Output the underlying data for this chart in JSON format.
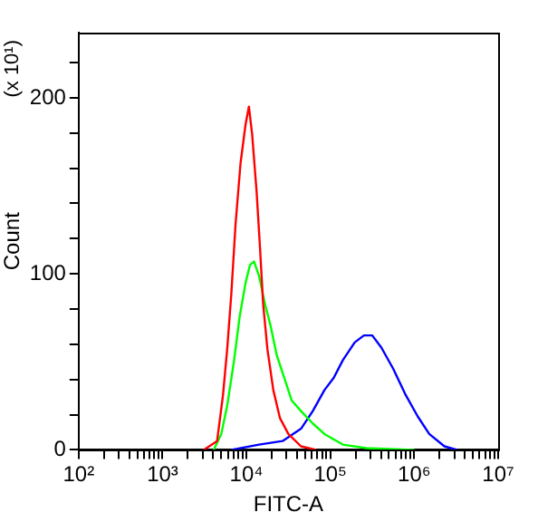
{
  "chart_data": {
    "type": "line",
    "xlabel": "FITC-A",
    "ylabel": "Count",
    "annotations": [
      "(x 10¹)"
    ],
    "log": "x",
    "grid": false,
    "legend": false,
    "marker": "none",
    "xlim": [
      100,
      10000000
    ],
    "ylim": [
      0,
      237
    ],
    "xticks": [
      {
        "value": 100,
        "label": "10²"
      },
      {
        "value": 200,
        "label": null
      },
      {
        "value": 300,
        "label": null
      },
      {
        "value": 400,
        "label": null
      },
      {
        "value": 500,
        "label": null
      },
      {
        "value": 600,
        "label": null
      },
      {
        "value": 700,
        "label": null
      },
      {
        "value": 800,
        "label": null
      },
      {
        "value": 900,
        "label": null
      },
      {
        "value": 1000,
        "label": "10³"
      },
      {
        "value": 2000,
        "label": null
      },
      {
        "value": 3000,
        "label": null
      },
      {
        "value": 4000,
        "label": null
      },
      {
        "value": 5000,
        "label": null
      },
      {
        "value": 6000,
        "label": null
      },
      {
        "value": 7000,
        "label": null
      },
      {
        "value": 8000,
        "label": null
      },
      {
        "value": 9000,
        "label": null
      },
      {
        "value": 10000,
        "label": "10⁴"
      },
      {
        "value": 20000,
        "label": null
      },
      {
        "value": 30000,
        "label": null
      },
      {
        "value": 40000,
        "label": null
      },
      {
        "value": 50000,
        "label": null
      },
      {
        "value": 60000,
        "label": null
      },
      {
        "value": 70000,
        "label": null
      },
      {
        "value": 80000,
        "label": null
      },
      {
        "value": 90000,
        "label": null
      },
      {
        "value": 100000,
        "label": "10⁵"
      },
      {
        "value": 200000,
        "label": null
      },
      {
        "value": 300000,
        "label": null
      },
      {
        "value": 400000,
        "label": null
      },
      {
        "value": 500000,
        "label": null
      },
      {
        "value": 600000,
        "label": null
      },
      {
        "value": 700000,
        "label": null
      },
      {
        "value": 800000,
        "label": null
      },
      {
        "value": 900000,
        "label": null
      },
      {
        "value": 1000000,
        "label": "10⁶"
      },
      {
        "value": 2000000,
        "label": null
      },
      {
        "value": 3000000,
        "label": null
      },
      {
        "value": 4000000,
        "label": null
      },
      {
        "value": 5000000,
        "label": null
      },
      {
        "value": 6000000,
        "label": null
      },
      {
        "value": 7000000,
        "label": null
      },
      {
        "value": 8000000,
        "label": null
      },
      {
        "value": 9000000,
        "label": null
      },
      {
        "value": 10000000,
        "label": "10⁷"
      }
    ],
    "yticks": [
      0,
      {
        "value": 20,
        "label": null
      },
      {
        "value": 40,
        "label": null
      },
      {
        "value": 60,
        "label": null
      },
      {
        "value": 80,
        "label": null
      },
      100,
      {
        "value": 120,
        "label": null
      },
      {
        "value": 140,
        "label": null
      },
      {
        "value": 160,
        "label": null
      },
      {
        "value": 180,
        "label": null
      },
      200,
      {
        "value": 220,
        "label": null
      }
    ],
    "series": [
      {
        "color": "#ff0000",
        "x": [
          3090,
          4470,
          5250,
          5890,
          6610,
          7410,
          8510,
          9770,
          10700,
          11700,
          13200,
          14500,
          15800,
          17800,
          20900,
          25100,
          31600,
          44700,
          67600
        ],
        "values": [
          0,
          5,
          31,
          57,
          89,
          128,
          163,
          185,
          195,
          179,
          147,
          115,
          83,
          57,
          34,
          18,
          9,
          2,
          0
        ]
      },
      {
        "color": "#00ff00",
        "x": [
          4070,
          5010,
          5890,
          7080,
          8320,
          9770,
          11000,
          12300,
          14100,
          16600,
          19500,
          22900,
          28200,
          34700,
          44700,
          61700,
          85100,
          141000,
          269000,
          1000000
        ],
        "values": [
          0,
          9,
          25,
          50,
          76,
          95,
          105,
          107,
          99,
          83,
          70,
          54,
          41,
          28,
          22,
          15,
          9,
          3,
          1,
          0
        ]
      },
      {
        "color": "#0000ff",
        "x": [
          6610,
          14100,
          26900,
          44700,
          61700,
          85100,
          110000,
          141000,
          195000,
          251000,
          316000,
          407000,
          562000,
          794000,
          1100000,
          1510000,
          2290000,
          3240000
        ],
        "values": [
          0,
          3,
          5,
          12,
          22,
          34,
          41,
          51,
          61,
          65,
          65,
          58,
          46,
          31,
          19,
          9,
          2,
          0
        ]
      }
    ]
  }
}
